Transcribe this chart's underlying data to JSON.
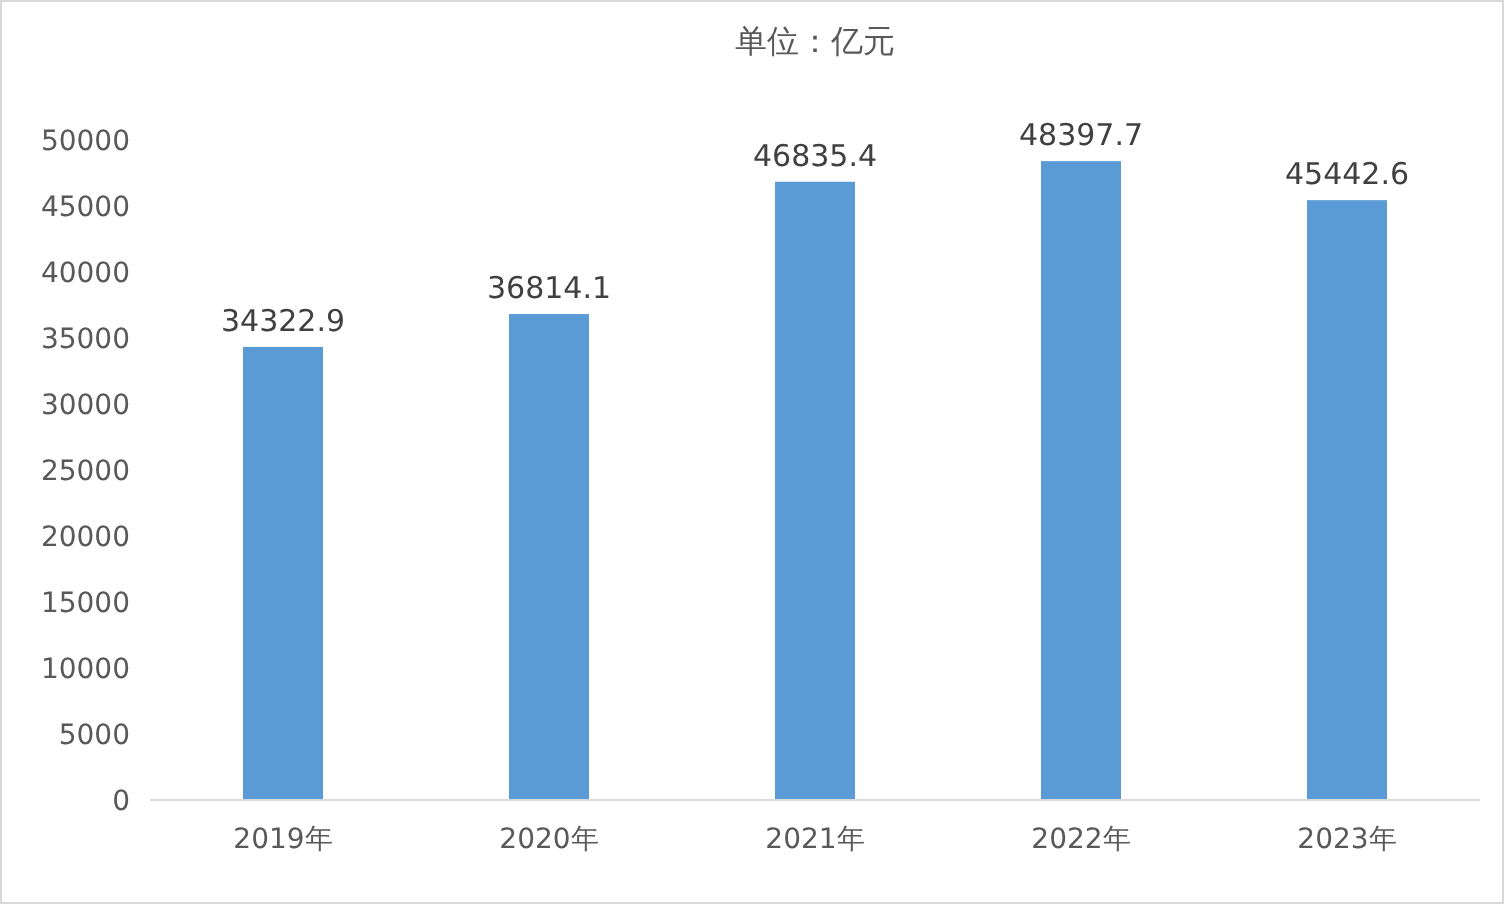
{
  "chart_data": {
    "type": "bar",
    "title": "单位：亿元",
    "categories": [
      "2019年",
      "2020年",
      "2021年",
      "2022年",
      "2023年"
    ],
    "values": [
      34322.9,
      36814.1,
      46835.4,
      48397.7,
      45442.6
    ],
    "color": "#5b9bd5",
    "ylim": [
      0,
      50000
    ],
    "yticks": [
      0,
      5000,
      10000,
      15000,
      20000,
      25000,
      30000,
      35000,
      40000,
      45000,
      50000
    ],
    "data_labels": true
  }
}
